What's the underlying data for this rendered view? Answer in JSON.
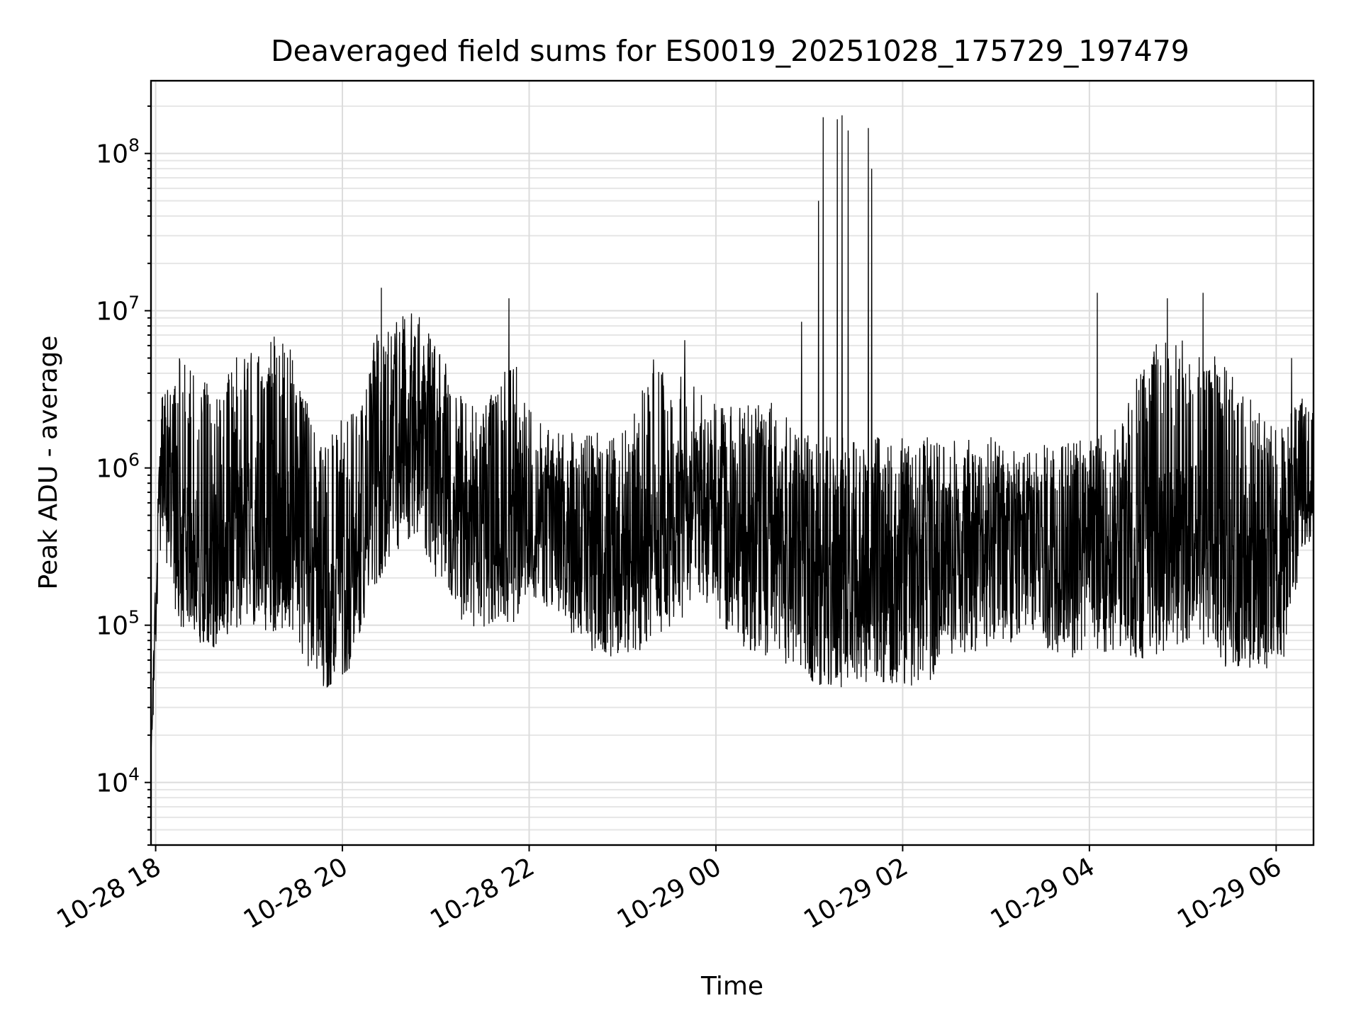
{
  "chart_data": {
    "type": "line",
    "title": "Deaveraged field sums for ES0019_20251028_175729_197479",
    "xlabel": "Time",
    "ylabel": "Peak ADU - average",
    "yscale": "log",
    "grid": "on (major and minor)",
    "line_color": "#000000",
    "xlim": [
      "2025-10-28 17:57",
      "2025-10-29 06:24"
    ],
    "ylim": [
      4000,
      290000000
    ],
    "x_ticks": [
      {
        "value": "2025-10-28 18:00",
        "label": "10-28 18"
      },
      {
        "value": "2025-10-28 20:00",
        "label": "10-28 20"
      },
      {
        "value": "2025-10-28 22:00",
        "label": "10-28 22"
      },
      {
        "value": "2025-10-29 00:00",
        "label": "10-29 00"
      },
      {
        "value": "2025-10-29 02:00",
        "label": "10-29 02"
      },
      {
        "value": "2025-10-29 04:00",
        "label": "10-29 04"
      },
      {
        "value": "2025-10-29 06:00",
        "label": "10-29 06"
      }
    ],
    "y_ticks": [
      {
        "value": 10000,
        "base": "10",
        "exp": "4"
      },
      {
        "value": 100000,
        "base": "10",
        "exp": "5"
      },
      {
        "value": 1000000,
        "base": "10",
        "exp": "6"
      },
      {
        "value": 10000000,
        "base": "10",
        "exp": "7"
      },
      {
        "value": 100000000,
        "base": "10",
        "exp": "8"
      }
    ],
    "series": [
      {
        "x": [
          "2025-10-28 17:57",
          "2025-10-28 17:59",
          "2025-10-28 18:01",
          "2025-10-28 18:04",
          "2025-10-28 18:08",
          "2025-10-28 18:15",
          "2025-10-28 18:25",
          "2025-10-28 18:35",
          "2025-10-28 18:45",
          "2025-10-28 19:00",
          "2025-10-28 19:15",
          "2025-10-28 19:30",
          "2025-10-28 19:40",
          "2025-10-28 19:50",
          "2025-10-28 20:05",
          "2025-10-28 20:20",
          "2025-10-28 20:35",
          "2025-10-28 20:50",
          "2025-10-28 21:05",
          "2025-10-28 21:20",
          "2025-10-28 21:35",
          "2025-10-28 21:50",
          "2025-10-28 22:05",
          "2025-10-28 22:20",
          "2025-10-28 22:35",
          "2025-10-28 22:50",
          "2025-10-28 23:05",
          "2025-10-28 23:20",
          "2025-10-28 23:35",
          "2025-10-28 23:50",
          "2025-10-29 00:05",
          "2025-10-29 00:20",
          "2025-10-29 00:35",
          "2025-10-29 00:50",
          "2025-10-29 01:00",
          "2025-10-29 01:10",
          "2025-10-29 01:20",
          "2025-10-29 01:30",
          "2025-10-29 01:40",
          "2025-10-29 01:50",
          "2025-10-29 02:05",
          "2025-10-29 02:20",
          "2025-10-29 02:35",
          "2025-10-29 02:50",
          "2025-10-29 03:05",
          "2025-10-29 03:20",
          "2025-10-29 03:35",
          "2025-10-29 03:50",
          "2025-10-29 04:05",
          "2025-10-29 04:20",
          "2025-10-29 04:35",
          "2025-10-29 04:50",
          "2025-10-29 05:05",
          "2025-10-29 05:20",
          "2025-10-29 05:35",
          "2025-10-29 05:50",
          "2025-10-29 06:05",
          "2025-10-29 06:15",
          "2025-10-29 06:24"
        ],
        "typical": [
          15000,
          60000,
          200000,
          1500000,
          700000,
          400000,
          250000,
          200000,
          180000,
          250000,
          350000,
          400000,
          200000,
          90000,
          100000,
          800000,
          1500000,
          1800000,
          700000,
          500000,
          450000,
          400000,
          550000,
          500000,
          400000,
          350000,
          300000,
          400000,
          500000,
          600000,
          400000,
          350000,
          300000,
          300000,
          350000,
          150000,
          120000,
          150000,
          200000,
          180000,
          180000,
          250000,
          300000,
          400000,
          450000,
          500000,
          400000,
          350000,
          300000,
          300000,
          300000,
          350000,
          400000,
          300000,
          150000,
          200000,
          300000,
          800000,
          900000
        ],
        "low": [
          15000,
          40000,
          150000,
          300000,
          200000,
          100000,
          80000,
          70000,
          80000,
          100000,
          90000,
          80000,
          50000,
          45000,
          60000,
          150000,
          300000,
          300000,
          150000,
          90000,
          100000,
          100000,
          150000,
          100000,
          70000,
          60000,
          60000,
          80000,
          100000,
          150000,
          90000,
          70000,
          60000,
          55000,
          45000,
          40000,
          38000,
          40000,
          45000,
          42000,
          40000,
          45000,
          60000,
          70000,
          70000,
          80000,
          70000,
          60000,
          70000,
          60000,
          60000,
          70000,
          80000,
          60000,
          45000,
          50000,
          60000,
          200000,
          500000
        ],
        "high": [
          15000,
          100000,
          500000,
          3000000,
          5000000,
          5500000,
          4000000,
          3500000,
          4500000,
          6000000,
          7000000,
          5500000,
          2000000,
          1500000,
          2500000,
          7000000,
          9000000,
          10000000,
          5000000,
          2500000,
          3000000,
          5000000,
          2000000,
          1800000,
          1800000,
          1700000,
          2000000,
          5000000,
          5000000,
          3000000,
          2500000,
          2500000,
          3000000,
          1800000,
          1600000,
          1600000,
          1600000,
          1600000,
          1600000,
          1600000,
          1600000,
          1600000,
          1600000,
          1600000,
          1600000,
          1600000,
          1600000,
          1500000,
          1600000,
          2000000,
          5000000,
          8000000,
          6000000,
          5500000,
          3500000,
          2500000,
          1800000,
          3000000,
          3500000
        ]
      }
    ],
    "spikes": [
      {
        "x": "2025-10-28 20:25",
        "y": 14000000
      },
      {
        "x": "2025-10-28 21:47",
        "y": 12000000
      },
      {
        "x": "2025-10-28 23:40",
        "y": 6500000
      },
      {
        "x": "2025-10-29 00:55",
        "y": 8500000
      },
      {
        "x": "2025-10-29 01:06",
        "y": 50000000
      },
      {
        "x": "2025-10-29 01:09",
        "y": 170000000
      },
      {
        "x": "2025-10-29 01:18",
        "y": 165000000
      },
      {
        "x": "2025-10-29 01:21",
        "y": 175000000
      },
      {
        "x": "2025-10-29 01:25",
        "y": 140000000
      },
      {
        "x": "2025-10-29 01:38",
        "y": 145000000
      },
      {
        "x": "2025-10-29 01:40",
        "y": 80000000
      },
      {
        "x": "2025-10-29 04:05",
        "y": 13000000
      },
      {
        "x": "2025-10-29 04:50",
        "y": 12000000
      },
      {
        "x": "2025-10-29 05:13",
        "y": 13000000
      },
      {
        "x": "2025-10-29 06:10",
        "y": 5000000
      }
    ]
  }
}
